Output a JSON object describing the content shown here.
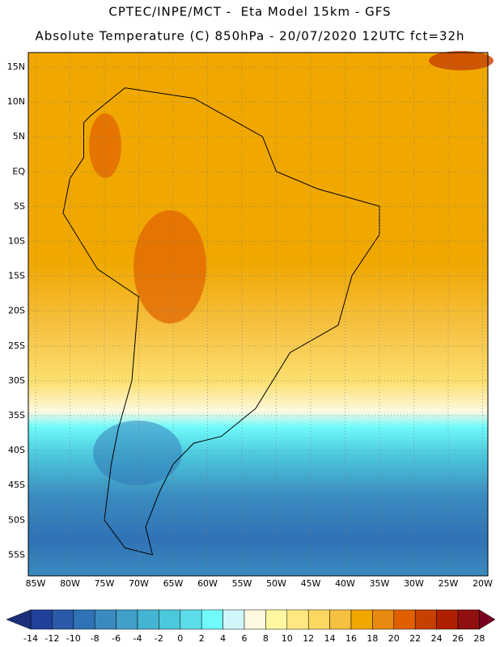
{
  "header": {
    "title": "CPTEC/INPE/MCT -  Eta Model 15km - GFS",
    "subtitle": "Absolute Temperature (C) 850hPa - 20/07/2020 12UTC fct=32h"
  },
  "map": {
    "lat_labels": [
      "15N",
      "10N",
      "5N",
      "EQ",
      "5S",
      "10S",
      "15S",
      "20S",
      "25S",
      "30S",
      "35S",
      "40S",
      "45S",
      "50S",
      "55S"
    ],
    "lon_labels": [
      "85W",
      "80W",
      "75W",
      "70W",
      "65W",
      "60W",
      "55W",
      "50W",
      "45W",
      "40W",
      "35W",
      "30W",
      "25W",
      "20W"
    ]
  },
  "colorbar": {
    "labels": [
      -14,
      -12,
      -10,
      -8,
      -6,
      -4,
      -2,
      0,
      2,
      4,
      6,
      8,
      10,
      12,
      14,
      16,
      18,
      20,
      22,
      24,
      26,
      28
    ],
    "under_color": "#1c2f7a",
    "over_color": "#7a0020",
    "colors": [
      "#20409a",
      "#2a5aa8",
      "#2f72b5",
      "#3a8ac0",
      "#3fa0c8",
      "#44b4d4",
      "#4cc8dc",
      "#5cdce8",
      "#70fafa",
      "#d0f6fa",
      "#fff8e0",
      "#fff8a0",
      "#ffe880",
      "#fbd860",
      "#f6c040",
      "#f0a800",
      "#e88a10",
      "#e06000",
      "#c84000",
      "#b02000",
      "#901010"
    ]
  }
}
